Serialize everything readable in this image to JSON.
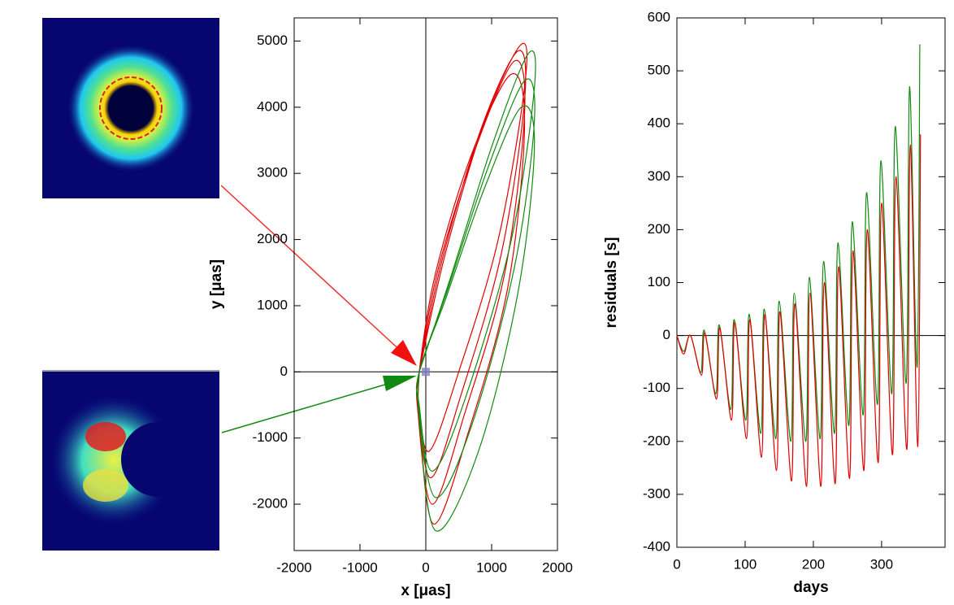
{
  "chart_data": [
    {
      "type": "line",
      "xlabel": "x [μas]",
      "ylabel": "y [μas]",
      "xlim": [
        -2000,
        2000
      ],
      "xticks": [
        -2000,
        -1000,
        0,
        1000,
        2000
      ],
      "ylim": [
        -2700,
        5350
      ],
      "yticks": [
        -2000,
        -1000,
        0,
        1000,
        2000,
        3000,
        4000,
        5000
      ],
      "series": [
        {
          "color": "#e00000",
          "x": [
            -100,
            300,
            900,
            1450,
            1500,
            1100,
            500,
            50,
            -120,
            -100,
            250,
            850,
            1400,
            1500,
            1150,
            550,
            80,
            -120,
            -100,
            200,
            800,
            1350,
            1500,
            1200,
            600,
            100,
            -120,
            -100,
            150,
            700,
            1300,
            1500,
            1250,
            650,
            120,
            -100,
            -100
          ],
          "values": [
            0,
            1800,
            3800,
            4950,
            4300,
            2000,
            0,
            -1200,
            -400,
            0,
            1700,
            3700,
            4850,
            4100,
            1800,
            -300,
            -1600,
            -500,
            0,
            1600,
            3500,
            4700,
            3900,
            1500,
            -600,
            -2000,
            -600,
            0,
            1500,
            3300,
            4500,
            3700,
            1300,
            -900,
            -2300,
            -700,
            0
          ]
        },
        {
          "color": "#108a10",
          "x": [
            -100,
            400,
            1000,
            1550,
            1650,
            1300,
            600,
            100,
            -100,
            -100,
            350,
            950,
            1500,
            1650,
            1350,
            700,
            150,
            -100,
            -100,
            300,
            900,
            1450,
            1650,
            1400,
            800,
            150,
            -100,
            -100
          ],
          "values": [
            0,
            1500,
            3400,
            4800,
            4300,
            2000,
            -400,
            -1500,
            -500,
            0,
            1300,
            3100,
            4400,
            3800,
            1600,
            -800,
            -1900,
            -600,
            0,
            1100,
            2800,
            4000,
            3400,
            1200,
            -1200,
            -2400,
            -700,
            0
          ]
        }
      ]
    },
    {
      "type": "line",
      "xlabel": "days",
      "ylabel": "residuals [s]",
      "xlim": [
        0,
        393
      ],
      "xticks": [
        0,
        100,
        200,
        300
      ],
      "ylim": [
        -400,
        600
      ],
      "yticks": [
        -400,
        -300,
        -200,
        -100,
        0,
        100,
        200,
        300,
        400,
        500,
        600
      ],
      "series": [
        {
          "color": "#108a10",
          "x": [
            0,
            10,
            20,
            35,
            40,
            57,
            62,
            79,
            84,
            101,
            106,
            123,
            128,
            145,
            150,
            167,
            172,
            189,
            194,
            210,
            215,
            231,
            236,
            252,
            257,
            273,
            278,
            294,
            299,
            315,
            320,
            336,
            341,
            352,
            356
          ],
          "values": [
            0,
            -30,
            0,
            -70,
            10,
            -110,
            20,
            -140,
            30,
            -160,
            40,
            -185,
            50,
            -195,
            65,
            -200,
            80,
            -200,
            110,
            -195,
            140,
            -185,
            175,
            -170,
            215,
            -150,
            270,
            -130,
            330,
            -110,
            395,
            -90,
            470,
            -60,
            550
          ]
        },
        {
          "color": "#e00000",
          "x": [
            0,
            10,
            20,
            36,
            41,
            58,
            63,
            80,
            85,
            102,
            107,
            124,
            129,
            146,
            151,
            168,
            173,
            190,
            195,
            211,
            216,
            232,
            237,
            253,
            258,
            274,
            279,
            295,
            300,
            316,
            321,
            337,
            342,
            353,
            357
          ],
          "values": [
            0,
            -35,
            0,
            -75,
            5,
            -120,
            15,
            -160,
            25,
            -195,
            30,
            -230,
            40,
            -255,
            45,
            -275,
            60,
            -285,
            80,
            -285,
            100,
            -280,
            130,
            -270,
            160,
            -255,
            200,
            -240,
            250,
            -225,
            300,
            -215,
            360,
            -210,
            380
          ]
        }
      ]
    }
  ]
}
